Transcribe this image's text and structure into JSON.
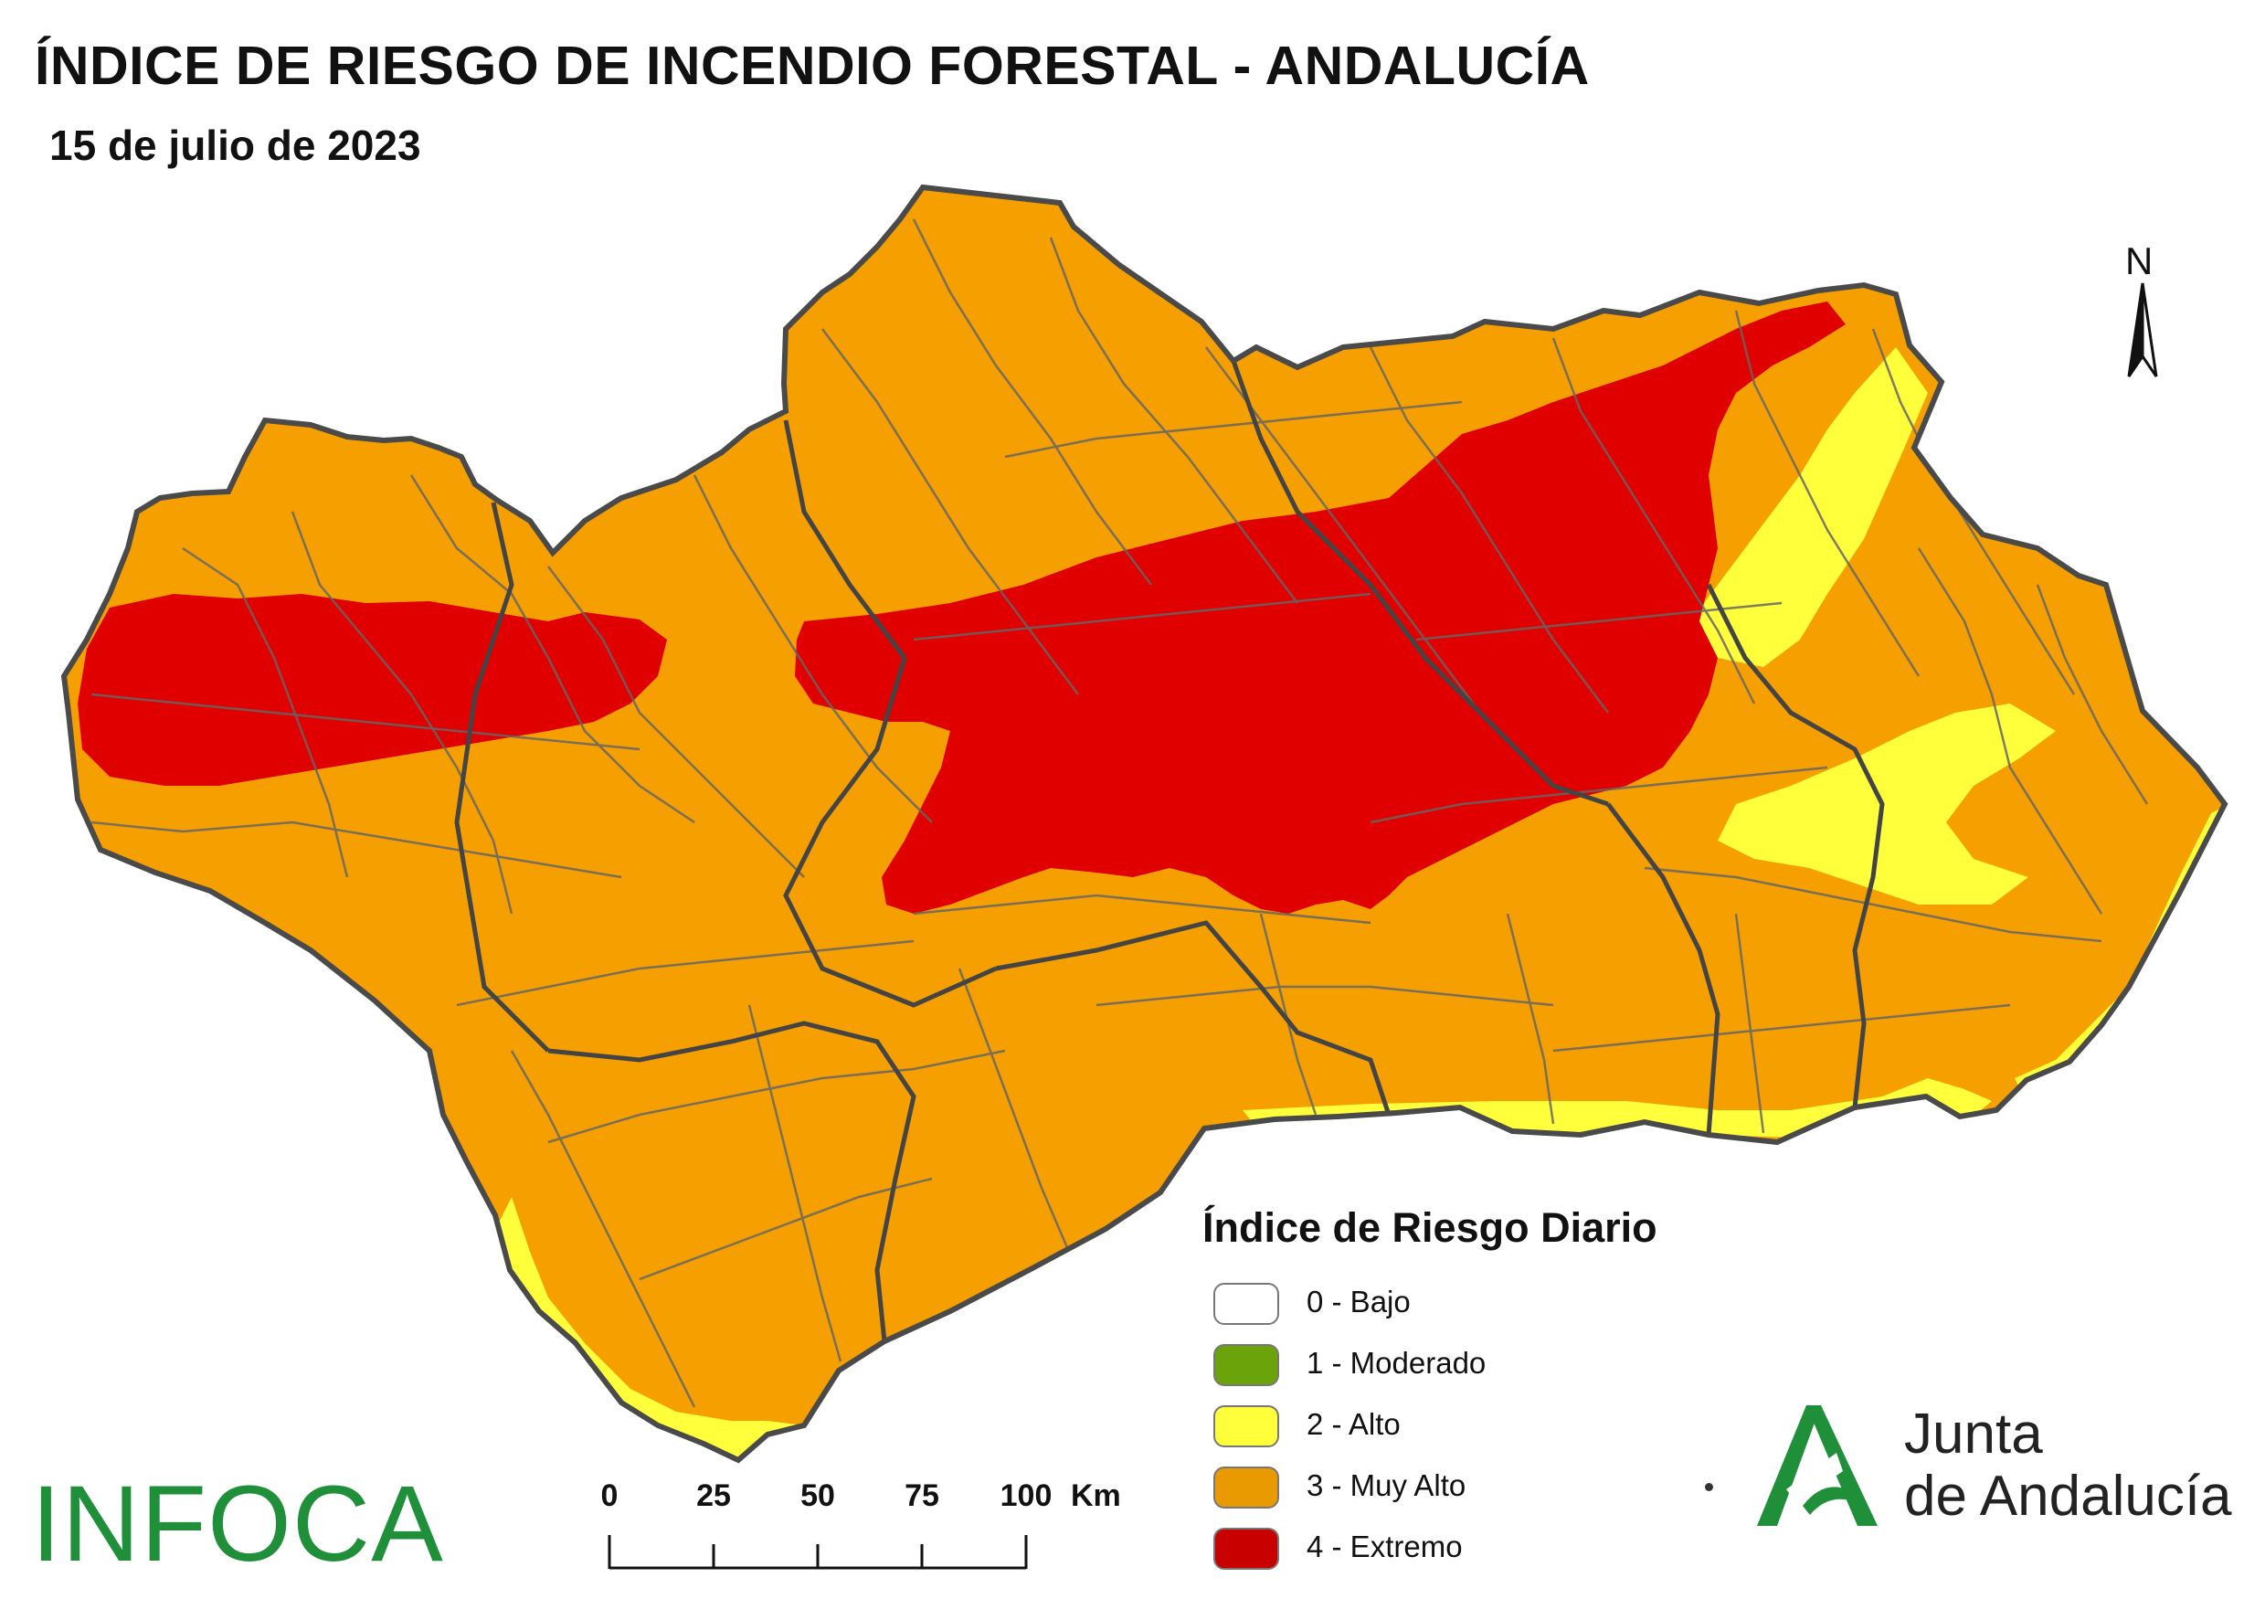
{
  "title": "ÍNDICE DE RIESGO DE INCENDIO FORESTAL - ANDALUCÍA",
  "date": "15 de julio de 2023",
  "north_label": "N",
  "legend": {
    "title": "Índice de Riesgo Diario",
    "items": [
      {
        "label": "0 - Bajo",
        "color": "#ffffff"
      },
      {
        "label": "1 - Moderado",
        "color": "#6aa40a"
      },
      {
        "label": "2 - Alto",
        "color": "#ffff3c"
      },
      {
        "label": "3 - Muy Alto",
        "color": "#f5a000"
      },
      {
        "label": "4 - Extremo",
        "color": "#e00000"
      }
    ]
  },
  "scale": {
    "ticks": [
      "0",
      "25",
      "50",
      "75",
      "100"
    ],
    "unit": "Km"
  },
  "logos": {
    "infoca": "INFOCA",
    "junta_line1": "Junta",
    "junta_line2": "de Andalucía",
    "junta_color": "#1f8f3a"
  },
  "map_colors": {
    "muy_alto": "#f5a000",
    "extremo": "#e00000",
    "alto": "#ffff3c",
    "border": "#555555"
  }
}
